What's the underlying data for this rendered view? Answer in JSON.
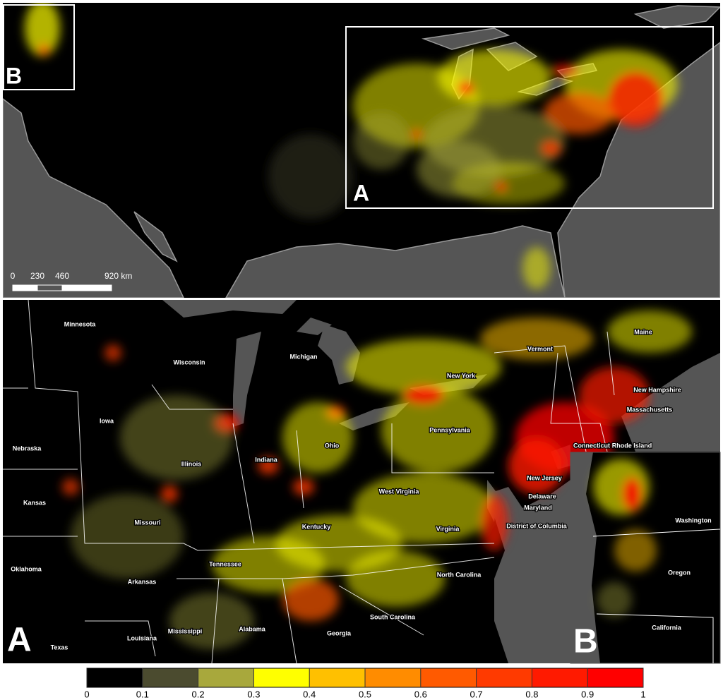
{
  "overview_map": {
    "inset_labels": [
      "A",
      "B"
    ],
    "scale_bar": {
      "ticks": [
        0,
        230,
        460,
        {
          "value": 920,
          "label": "920 km"
        }
      ]
    }
  },
  "panel_a": {
    "label": "A",
    "state_labels": [
      "Minnesota",
      "Wisconsin",
      "Michigan",
      "Iowa",
      "Nebraska",
      "Illinois",
      "Indiana",
      "Ohio",
      "Pennsylvania",
      "New York",
      "Vermont",
      "Maine",
      "New Hampshire",
      "Massachusetts",
      "Connecticut",
      "Rhode Island",
      "New Jersey",
      "Delaware",
      "Maryland",
      "District of Columbia",
      "Virginia",
      "West Virginia",
      "Kentucky",
      "Missouri",
      "Kansas",
      "Oklahoma",
      "Arkansas",
      "Tennessee",
      "North Carolina",
      "South Carolina",
      "Georgia",
      "Alabama",
      "Mississippi",
      "Louisiana",
      "Texas"
    ]
  },
  "panel_b": {
    "label": "B",
    "state_labels": [
      "Washington",
      "Oregon",
      "California"
    ]
  },
  "legend": {
    "ticks": [
      0,
      0.1,
      0.2,
      0.3,
      0.4,
      0.5,
      0.6,
      0.7,
      0.8,
      0.9,
      1
    ],
    "colors": [
      "#000000",
      "#4b4b2f",
      "#a8a83c",
      "#ffff00",
      "#ffc000",
      "#ff8c00",
      "#ff5a00",
      "#ff3a00",
      "#ff1a00",
      "#ff0000"
    ]
  }
}
